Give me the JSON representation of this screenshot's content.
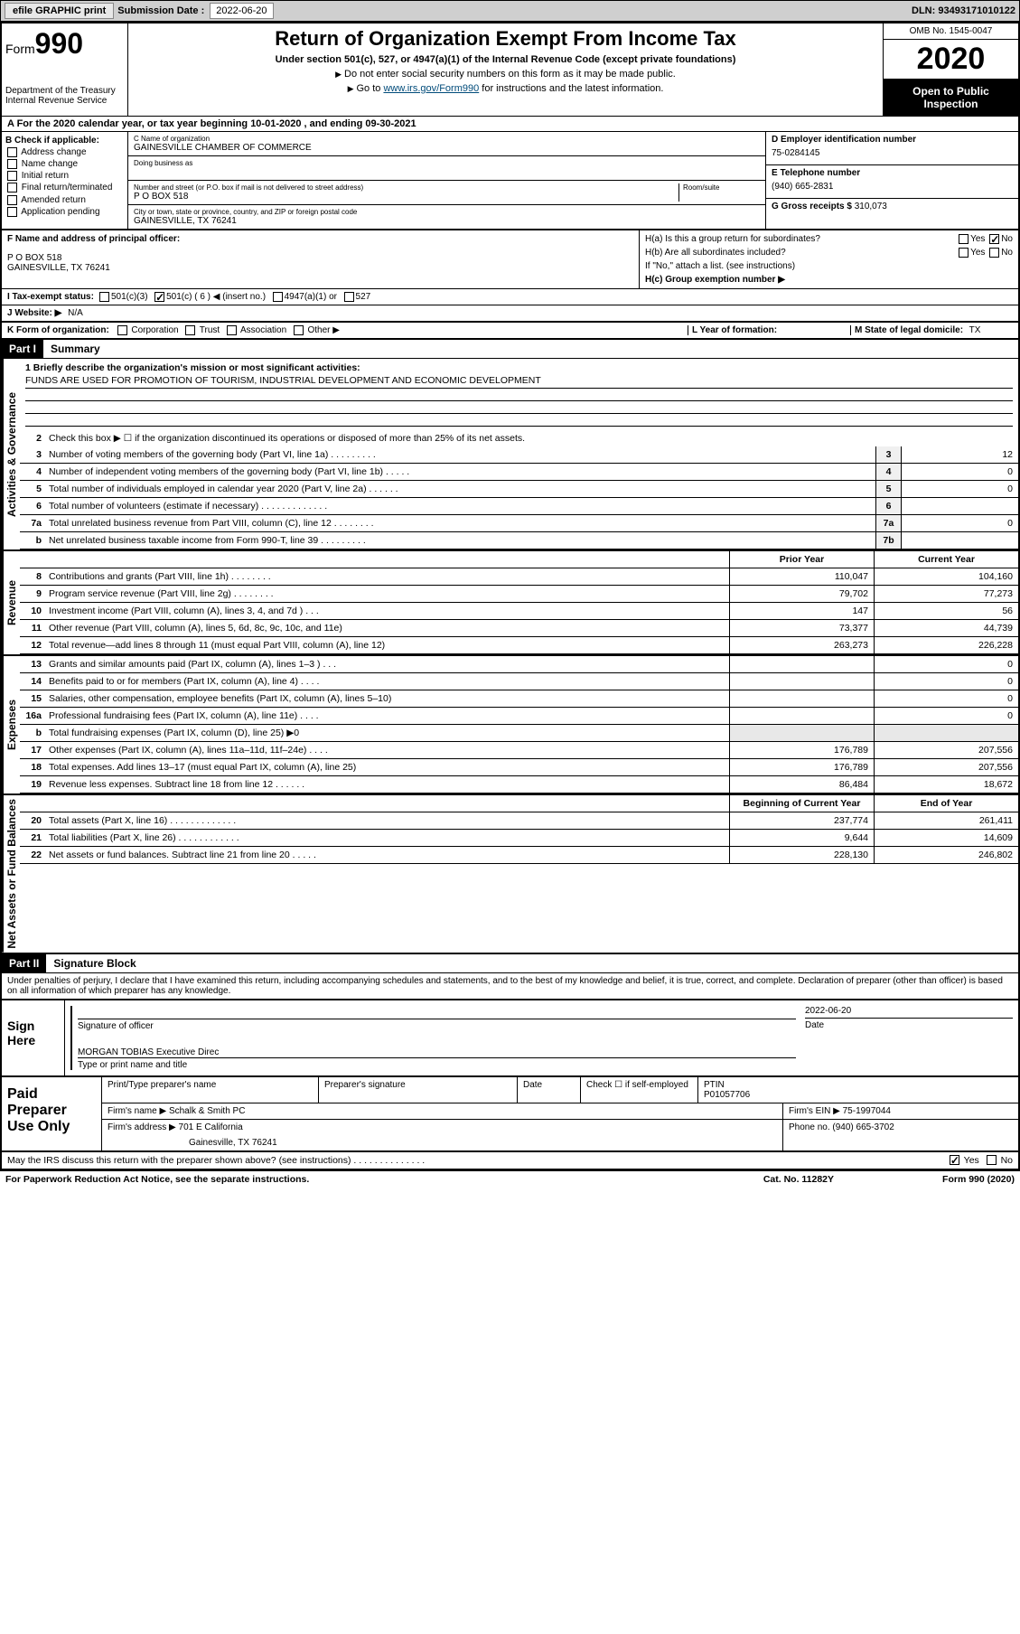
{
  "header": {
    "efile": "efile GRAPHIC print",
    "sub_label": "Submission Date :",
    "sub_date": "2022-06-20",
    "dln": "DLN: 93493171010122"
  },
  "top": {
    "form_word": "Form",
    "form_num": "990",
    "dept": "Department of the Treasury\nInternal Revenue Service",
    "title": "Return of Organization Exempt From Income Tax",
    "subtitle": "Under section 501(c), 527, or 4947(a)(1) of the Internal Revenue Code (except private foundations)",
    "note1": "Do not enter social security numbers on this form as it may be made public.",
    "note2_a": "Go to ",
    "note2_link": "www.irs.gov/Form990",
    "note2_b": " for instructions and the latest information.",
    "omb": "OMB No. 1545-0047",
    "year": "2020",
    "inspect": "Open to Public Inspection"
  },
  "row_a": "A For the 2020 calendar year, or tax year beginning 10-01-2020    , and ending 09-30-2021",
  "b": {
    "header": "B Check if applicable:",
    "items": [
      "Address change",
      "Name change",
      "Initial return",
      "Final return/terminated",
      "Amended return",
      "Application pending"
    ]
  },
  "c": {
    "name_lab": "C Name of organization",
    "name": "GAINESVILLE CHAMBER OF COMMERCE",
    "dba_lab": "Doing business as",
    "addr_lab": "Number and street (or P.O. box if mail is not delivered to street address)",
    "room_lab": "Room/suite",
    "addr": "P O BOX 518",
    "city_lab": "City or town, state or province, country, and ZIP or foreign postal code",
    "city": "GAINESVILLE, TX  76241"
  },
  "d": {
    "lab": "D Employer identification number",
    "val": "75-0284145"
  },
  "e": {
    "lab": "E Telephone number",
    "val": "(940) 665-2831"
  },
  "g": {
    "lab": "G Gross receipts $",
    "val": "310,073"
  },
  "f": {
    "lab": "F Name and address of principal officer:",
    "addr1": "P O BOX 518",
    "addr2": "GAINESVILLE, TX  76241"
  },
  "h": {
    "a": "H(a)  Is this a group return for subordinates?",
    "b": "H(b)  Are all subordinates included?",
    "note": "If \"No,\" attach a list. (see instructions)",
    "c": "H(c)  Group exemption number ▶"
  },
  "i": {
    "lab": "I  Tax-exempt status:",
    "o1": "501(c)(3)",
    "o2": "501(c) ( 6 ) ◀ (insert no.)",
    "o3": "4947(a)(1) or",
    "o4": "527"
  },
  "j": {
    "lab": "J  Website: ▶",
    "val": "N/A"
  },
  "k": {
    "lab": "K Form of organization:",
    "o1": "Corporation",
    "o2": "Trust",
    "o3": "Association",
    "o4": "Other ▶"
  },
  "l": {
    "lab": "L Year of formation:"
  },
  "m": {
    "lab": "M State of legal domicile:",
    "val": "TX"
  },
  "part1": {
    "hdr": "Part I",
    "title": "Summary",
    "q1": "1  Briefly describe the organization's mission or most significant activities:",
    "mission": "FUNDS ARE USED FOR PROMOTION OF TOURISM, INDUSTRIAL DEVELOPMENT AND ECONOMIC DEVELOPMENT",
    "q2": "Check this box ▶ ☐  if the organization discontinued its operations or disposed of more than 25% of its net assets.",
    "side_ag": "Activities & Governance",
    "side_rev": "Revenue",
    "side_exp": "Expenses",
    "side_na": "Net Assets or Fund Balances",
    "lines_ag": [
      {
        "n": "3",
        "d": "Number of voting members of the governing body (Part VI, line 1a)  .   .   .   .   .   .   .   .   .",
        "bn": "3",
        "v": "12"
      },
      {
        "n": "4",
        "d": "Number of independent voting members of the governing body (Part VI, line 1b)  .   .   .   .   .",
        "bn": "4",
        "v": "0"
      },
      {
        "n": "5",
        "d": "Total number of individuals employed in calendar year 2020 (Part V, line 2a)  .   .   .   .   .   .",
        "bn": "5",
        "v": "0"
      },
      {
        "n": "6",
        "d": "Total number of volunteers (estimate if necessary)  .   .   .   .   .   .   .   .   .   .   .   .   .",
        "bn": "6",
        "v": ""
      },
      {
        "n": "7a",
        "d": "Total unrelated business revenue from Part VIII, column (C), line 12  .   .   .   .   .   .   .   .",
        "bn": "7a",
        "v": "0"
      },
      {
        "n": "b",
        "d": "Net unrelated business taxable income from Form 990-T, line 39  .   .   .   .   .   .   .   .   .",
        "bn": "7b",
        "v": ""
      }
    ],
    "hdr_py": "Prior Year",
    "hdr_cy": "Current Year",
    "lines_rev": [
      {
        "n": "8",
        "d": "Contributions and grants (Part VIII, line 1h)   .   .   .   .   .   .   .   .",
        "py": "110,047",
        "cy": "104,160"
      },
      {
        "n": "9",
        "d": "Program service revenue (Part VIII, line 2g)   .   .   .   .   .   .   .   .",
        "py": "79,702",
        "cy": "77,273"
      },
      {
        "n": "10",
        "d": "Investment income (Part VIII, column (A), lines 3, 4, and 7d )   .   .   .",
        "py": "147",
        "cy": "56"
      },
      {
        "n": "11",
        "d": "Other revenue (Part VIII, column (A), lines 5, 6d, 8c, 9c, 10c, and 11e)",
        "py": "73,377",
        "cy": "44,739"
      },
      {
        "n": "12",
        "d": "Total revenue—add lines 8 through 11 (must equal Part VIII, column (A), line 12)",
        "py": "263,273",
        "cy": "226,228"
      }
    ],
    "lines_exp": [
      {
        "n": "13",
        "d": "Grants and similar amounts paid (Part IX, column (A), lines 1–3 )   .   .   .",
        "py": "",
        "cy": "0"
      },
      {
        "n": "14",
        "d": "Benefits paid to or for members (Part IX, column (A), line 4)   .   .   .   .",
        "py": "",
        "cy": "0"
      },
      {
        "n": "15",
        "d": "Salaries, other compensation, employee benefits (Part IX, column (A), lines 5–10)",
        "py": "",
        "cy": "0"
      },
      {
        "n": "16a",
        "d": "Professional fundraising fees (Part IX, column (A), line 11e)   .   .   .   .",
        "py": "",
        "cy": "0"
      },
      {
        "n": "b",
        "d": "Total fundraising expenses (Part IX, column (D), line 25) ▶0",
        "py": "GREY",
        "cy": "GREY"
      },
      {
        "n": "17",
        "d": "Other expenses (Part IX, column (A), lines 11a–11d, 11f–24e)   .   .   .   .",
        "py": "176,789",
        "cy": "207,556"
      },
      {
        "n": "18",
        "d": "Total expenses. Add lines 13–17 (must equal Part IX, column (A), line 25)",
        "py": "176,789",
        "cy": "207,556"
      },
      {
        "n": "19",
        "d": "Revenue less expenses. Subtract line 18 from line 12   .   .   .   .   .   .",
        "py": "86,484",
        "cy": "18,672"
      }
    ],
    "hdr_bcy": "Beginning of Current Year",
    "hdr_eoy": "End of Year",
    "lines_na": [
      {
        "n": "20",
        "d": "Total assets (Part X, line 16)  .   .   .   .   .   .   .   .   .   .   .   .   .",
        "py": "237,774",
        "cy": "261,411"
      },
      {
        "n": "21",
        "d": "Total liabilities (Part X, line 26)  .   .   .   .   .   .   .   .   .   .   .   .",
        "py": "9,644",
        "cy": "14,609"
      },
      {
        "n": "22",
        "d": "Net assets or fund balances. Subtract line 21 from line 20   .   .   .   .   .",
        "py": "228,130",
        "cy": "246,802"
      }
    ]
  },
  "part2": {
    "hdr": "Part II",
    "title": "Signature Block",
    "decl": "Under penalties of perjury, I declare that I have examined this return, including accompanying schedules and statements, and to the best of my knowledge and belief, it is true, correct, and complete. Declaration of preparer (other than officer) is based on all information of which preparer has any knowledge."
  },
  "sign": {
    "here": "Sign Here",
    "sig_lab": "Signature of officer",
    "date_lab": "Date",
    "date": "2022-06-20",
    "name": "MORGAN TOBIAS Executive Direc",
    "name_lab": "Type or print name and title"
  },
  "paid": {
    "title": "Paid Preparer Use Only",
    "h1": "Print/Type preparer's name",
    "h2": "Preparer's signature",
    "h3": "Date",
    "h4a": "Check ☐ if self-employed",
    "h5": "PTIN",
    "ptin": "P01057706",
    "firm_lab": "Firm's name    ▶",
    "firm": "Schalk & Smith PC",
    "ein_lab": "Firm's EIN ▶",
    "ein": "75-1997044",
    "addr_lab": "Firm's address ▶",
    "addr1": "701 E California",
    "addr2": "Gainesville, TX  76241",
    "phone_lab": "Phone no.",
    "phone": "(940) 665-3702"
  },
  "footer": {
    "q": "May the IRS discuss this return with the preparer shown above? (see instructions)  .   .   .   .   .   .   .   .   .   .   .   .   .   .",
    "yes": "Yes",
    "no": "No",
    "pra": "For Paperwork Reduction Act Notice, see the separate instructions.",
    "cat": "Cat. No. 11282Y",
    "form": "Form 990 (2020)"
  },
  "colors": {
    "header_bg": "#cfcfcf",
    "link": "#004b7a"
  }
}
